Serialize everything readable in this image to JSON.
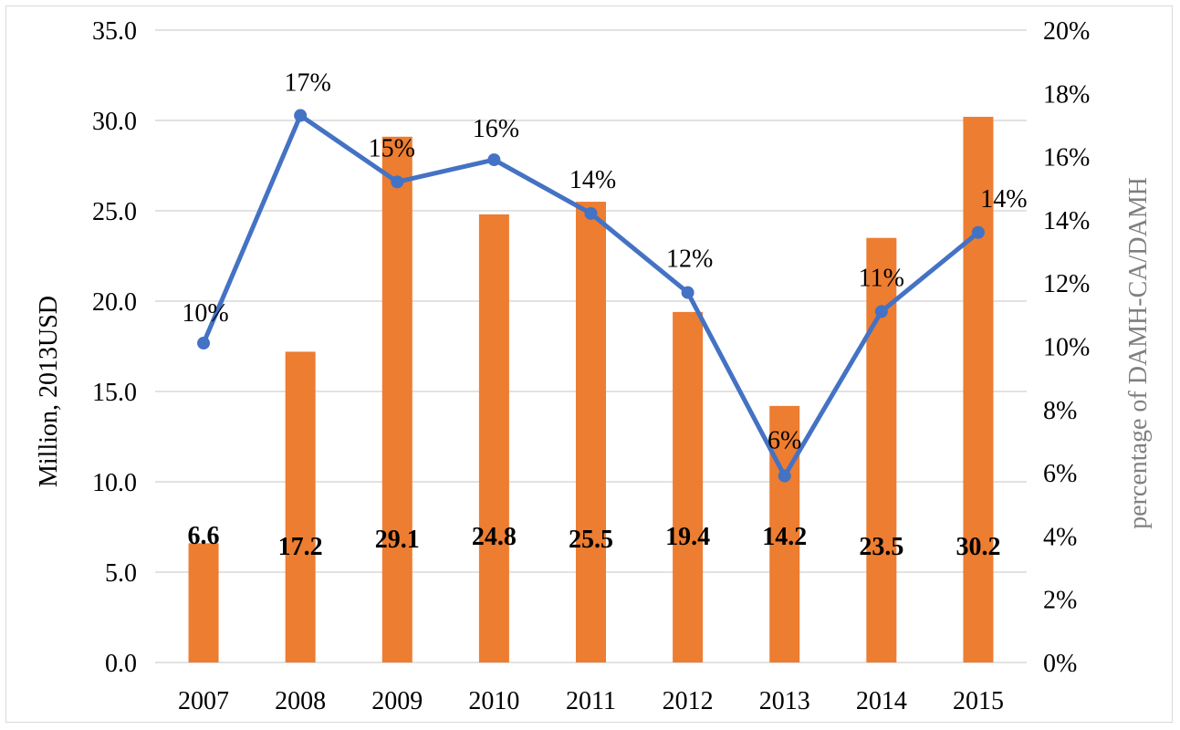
{
  "chart_data": {
    "type": "bar+line",
    "categories": [
      "2007",
      "2008",
      "2009",
      "2010",
      "2011",
      "2012",
      "2013",
      "2014",
      "2015"
    ],
    "series": [
      {
        "type": "bar",
        "axis": "left",
        "color": "#ed7d31",
        "values": [
          6.6,
          17.2,
          29.1,
          24.8,
          25.5,
          19.4,
          14.2,
          23.5,
          30.2
        ],
        "value_labels": [
          "6.6",
          "17.2",
          "29.1",
          "24.8",
          "25.5",
          "19.4",
          "14.2",
          "23.5",
          "30.2"
        ]
      },
      {
        "type": "line",
        "axis": "right",
        "color": "#4472c4",
        "values": [
          0.101,
          0.173,
          0.152,
          0.159,
          0.142,
          0.117,
          0.059,
          0.111,
          0.136
        ],
        "value_labels": [
          "10%",
          "17%",
          "15%",
          "16%",
          "14%",
          "12%",
          "6%",
          "11%",
          "14%"
        ]
      }
    ],
    "y_left": {
      "label": "Million, 2013USD",
      "range": [
        0,
        35
      ],
      "ticks": [
        "0.0",
        "5.0",
        "10.0",
        "15.0",
        "20.0",
        "25.0",
        "30.0",
        "35.0"
      ]
    },
    "y_right": {
      "label": "percentage of DAMH-CA/DAMH",
      "range": [
        0,
        0.2
      ],
      "ticks": [
        "0%",
        "2%",
        "4%",
        "6%",
        "8%",
        "10%",
        "12%",
        "14%",
        "16%",
        "18%",
        "20%"
      ]
    },
    "grid": true,
    "legend": "none"
  }
}
